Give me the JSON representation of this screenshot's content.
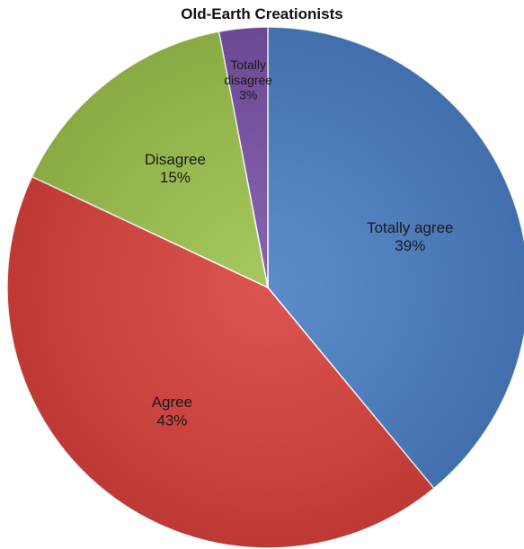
{
  "chart_data": {
    "type": "pie",
    "title": "Old-Earth Creationists",
    "start_angle_deg": 0,
    "direction": "clockwise",
    "slices": [
      {
        "label": "Totally agree",
        "value": 39,
        "value_label": "39%",
        "color": "#4a7fc4"
      },
      {
        "label": "Agree",
        "value": 43,
        "value_label": "43%",
        "color": "#d8413c"
      },
      {
        "label": "Disagree",
        "value": 15,
        "value_label": "15%",
        "color": "#9cc24c"
      },
      {
        "label": "Totally disagree",
        "value": 3,
        "value_label": "3%",
        "color": "#7a52a8"
      }
    ],
    "legend": "none"
  }
}
